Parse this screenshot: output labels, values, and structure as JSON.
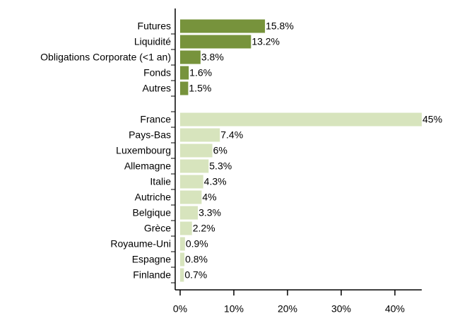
{
  "chart_data": {
    "type": "hbar",
    "categories": [
      "Futures",
      "Liquidité",
      "Obligations Corporate (<1 an)",
      "Fonds",
      "Autres",
      null,
      "France",
      "Pays-Bas",
      "Luxembourg",
      "Allemagne",
      "Italie",
      "Autriche",
      "Belgique",
      "Grèce",
      "Royaume-Uni",
      "Espagne",
      "Finlande"
    ],
    "values": [
      15.8,
      13.2,
      3.8,
      1.6,
      1.5,
      null,
      45,
      7.4,
      6,
      5.3,
      4.3,
      4,
      3.3,
      2.2,
      0.9,
      0.8,
      0.7
    ],
    "value_labels": [
      "15.8%",
      "13.2%",
      "3.8%",
      "1.6%",
      "1.5%",
      null,
      "45%",
      "7.4%",
      "6%",
      "5.3%",
      "4.3%",
      "4%",
      "3.3%",
      "2.2%",
      "0.9%",
      "0.8%",
      "0.7%"
    ],
    "colors": [
      "#77933c",
      "#77933c",
      "#77933c",
      "#77933c",
      "#77933c",
      null,
      "#d7e4bd",
      "#d7e4bd",
      "#d7e4bd",
      "#d7e4bd",
      "#d7e4bd",
      "#d7e4bd",
      "#d7e4bd",
      "#d7e4bd",
      "#d7e4bd",
      "#d7e4bd",
      "#d7e4bd"
    ],
    "xlim": [
      0,
      45
    ],
    "xticks": [
      {
        "value": 0,
        "label": "0%"
      },
      {
        "value": 10,
        "label": "10%"
      },
      {
        "value": 20,
        "label": "20%"
      },
      {
        "value": 30,
        "label": "30%"
      },
      {
        "value": 40,
        "label": "40%"
      }
    ],
    "grid": false
  }
}
